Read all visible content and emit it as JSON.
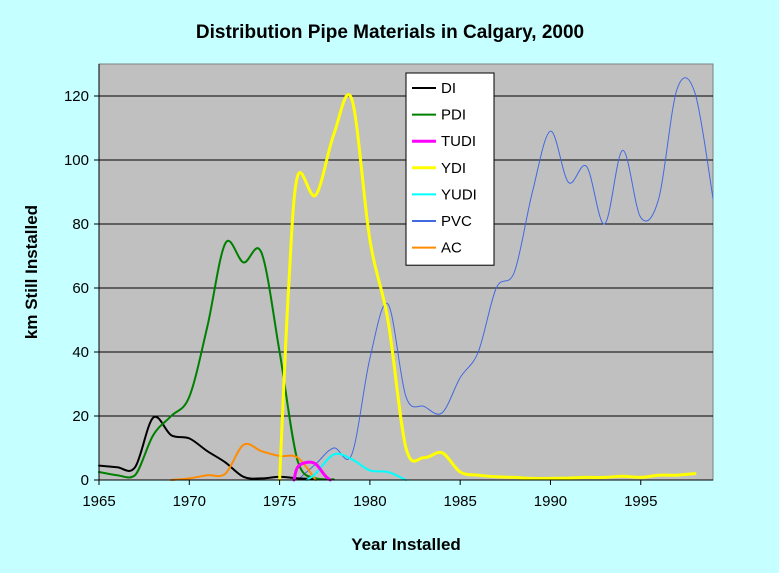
{
  "colors": {
    "page_background": "#c6ffff",
    "plot_background": "#c0c0c0",
    "legend_background": "#ffffff",
    "grid": "#000000"
  },
  "chart_data": {
    "type": "line",
    "title": "Distribution Pipe Materials in Calgary, 2000",
    "xlabel": "Year Installed",
    "ylabel": "km Still Installed",
    "xlim": [
      1965,
      1999
    ],
    "ylim": [
      0,
      130
    ],
    "xticks": [
      1965,
      1970,
      1975,
      1980,
      1985,
      1990,
      1995
    ],
    "yticks": [
      0,
      20,
      40,
      60,
      80,
      100,
      120
    ],
    "grid": "horizontal",
    "legend_position": "top-center",
    "series": [
      {
        "name": "DI",
        "color": "#000000",
        "width": 2,
        "x": [
          1965,
          1966,
          1967,
          1968,
          1969,
          1970,
          1971,
          1972,
          1973,
          1974,
          1975,
          1976,
          1977
        ],
        "y": [
          4.5,
          4,
          4,
          19.5,
          14,
          13,
          9,
          5.5,
          1,
          0.5,
          1,
          0.5,
          0.3
        ]
      },
      {
        "name": "PDI",
        "color": "#008000",
        "width": 2,
        "x": [
          1965,
          1966,
          1967,
          1968,
          1969,
          1970,
          1971,
          1972,
          1973,
          1974,
          1975,
          1976,
          1977,
          1978
        ],
        "y": [
          2.5,
          1.5,
          1.5,
          14,
          20,
          26,
          48,
          74,
          68,
          71,
          40,
          6,
          0.5,
          0.2
        ]
      },
      {
        "name": "TUDI",
        "color": "#ff00ff",
        "width": 3,
        "x": [
          1975.8,
          1976,
          1976.5,
          1977,
          1977.5,
          1977.8
        ],
        "y": [
          0,
          4,
          5.5,
          5,
          1.5,
          0
        ]
      },
      {
        "name": "YDI",
        "color": "#ffff00",
        "width": 3,
        "x": [
          1975,
          1975.5,
          1976,
          1977,
          1978,
          1979,
          1980,
          1981,
          1982,
          1983,
          1984,
          1985,
          1986,
          1987,
          1988,
          1989,
          1990,
          1991,
          1992,
          1993,
          1994,
          1995,
          1996,
          1997,
          1998
        ],
        "y": [
          0,
          60,
          95,
          89,
          108,
          119,
          75,
          50,
          10,
          7,
          8.5,
          2.5,
          1.5,
          1,
          0.8,
          0.5,
          0.5,
          0.6,
          0.8,
          0.8,
          1.2,
          0.8,
          1.5,
          1.5,
          2
        ]
      },
      {
        "name": "YUDI",
        "color": "#00ffff",
        "width": 2,
        "x": [
          1976.5,
          1977,
          1978,
          1979,
          1980,
          1981,
          1982
        ],
        "y": [
          0,
          2,
          8,
          6.5,
          3,
          2.5,
          0
        ]
      },
      {
        "name": "PVC",
        "color": "#4169e1",
        "width": 1,
        "x": [
          1976,
          1977,
          1978,
          1979,
          1980,
          1981,
          1982,
          1983,
          1984,
          1985,
          1986,
          1987,
          1988,
          1989,
          1990,
          1991,
          1992,
          1993,
          1994,
          1995,
          1996,
          1997,
          1998,
          1999
        ],
        "y": [
          0,
          5,
          10,
          8,
          38,
          55,
          26,
          23,
          21,
          32,
          40,
          60,
          65,
          90,
          109,
          93,
          98,
          80,
          103,
          82,
          88,
          122,
          121,
          88
        ]
      },
      {
        "name": "AC",
        "color": "#ff8c00",
        "width": 2,
        "x": [
          1969,
          1970,
          1971,
          1972,
          1973,
          1974,
          1975,
          1976,
          1977
        ],
        "y": [
          0,
          0.5,
          1.5,
          2,
          11,
          9,
          7.5,
          7,
          0
        ]
      }
    ]
  }
}
